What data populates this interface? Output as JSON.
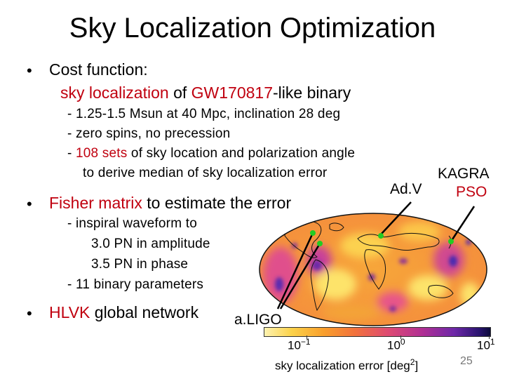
{
  "slide": {
    "title": "Sky Localization Optimization",
    "bullets": [
      {
        "marker": "•",
        "text": "Cost function:"
      },
      {
        "marker": "•",
        "pre": "",
        "highlight": "Fisher matrix",
        "post": " to estimate the error"
      },
      {
        "marker": "•",
        "pre": "",
        "highlight": "HLVK",
        "post": " global network"
      }
    ],
    "cost_line": {
      "highlight_a": "sky localization",
      "mid": " of ",
      "highlight_b": "GW170817",
      "post": "-like binary"
    },
    "cost_sub": [
      "- 1.25-1.5 Msun at 40 Mpc, inclination 28 deg",
      "- zero spins, no precession"
    ],
    "sets_line": {
      "pre": "- ",
      "highlight": "108 sets",
      "post": " of sky location and polarization angle"
    },
    "sets_cont": "to derive median of sky localization error",
    "fisher_sub": [
      "- inspiral waveform to",
      "3.0 PN in amplitude",
      "3.5 PN in phase",
      "- 11 binary parameters"
    ],
    "page_number": "25"
  },
  "map": {
    "labels": {
      "advirgo": "Ad.V",
      "kagra": "KAGRA",
      "pso": "PSO",
      "aligo": "a.LIGO"
    },
    "marker_color": "#22cc22",
    "colorbar": {
      "ticks": [
        "10",
        "10",
        "10"
      ],
      "exponents": [
        "−1",
        "0",
        "1"
      ],
      "label": "sky localization error [deg",
      "label_exp": "2",
      "label_end": "]"
    }
  }
}
